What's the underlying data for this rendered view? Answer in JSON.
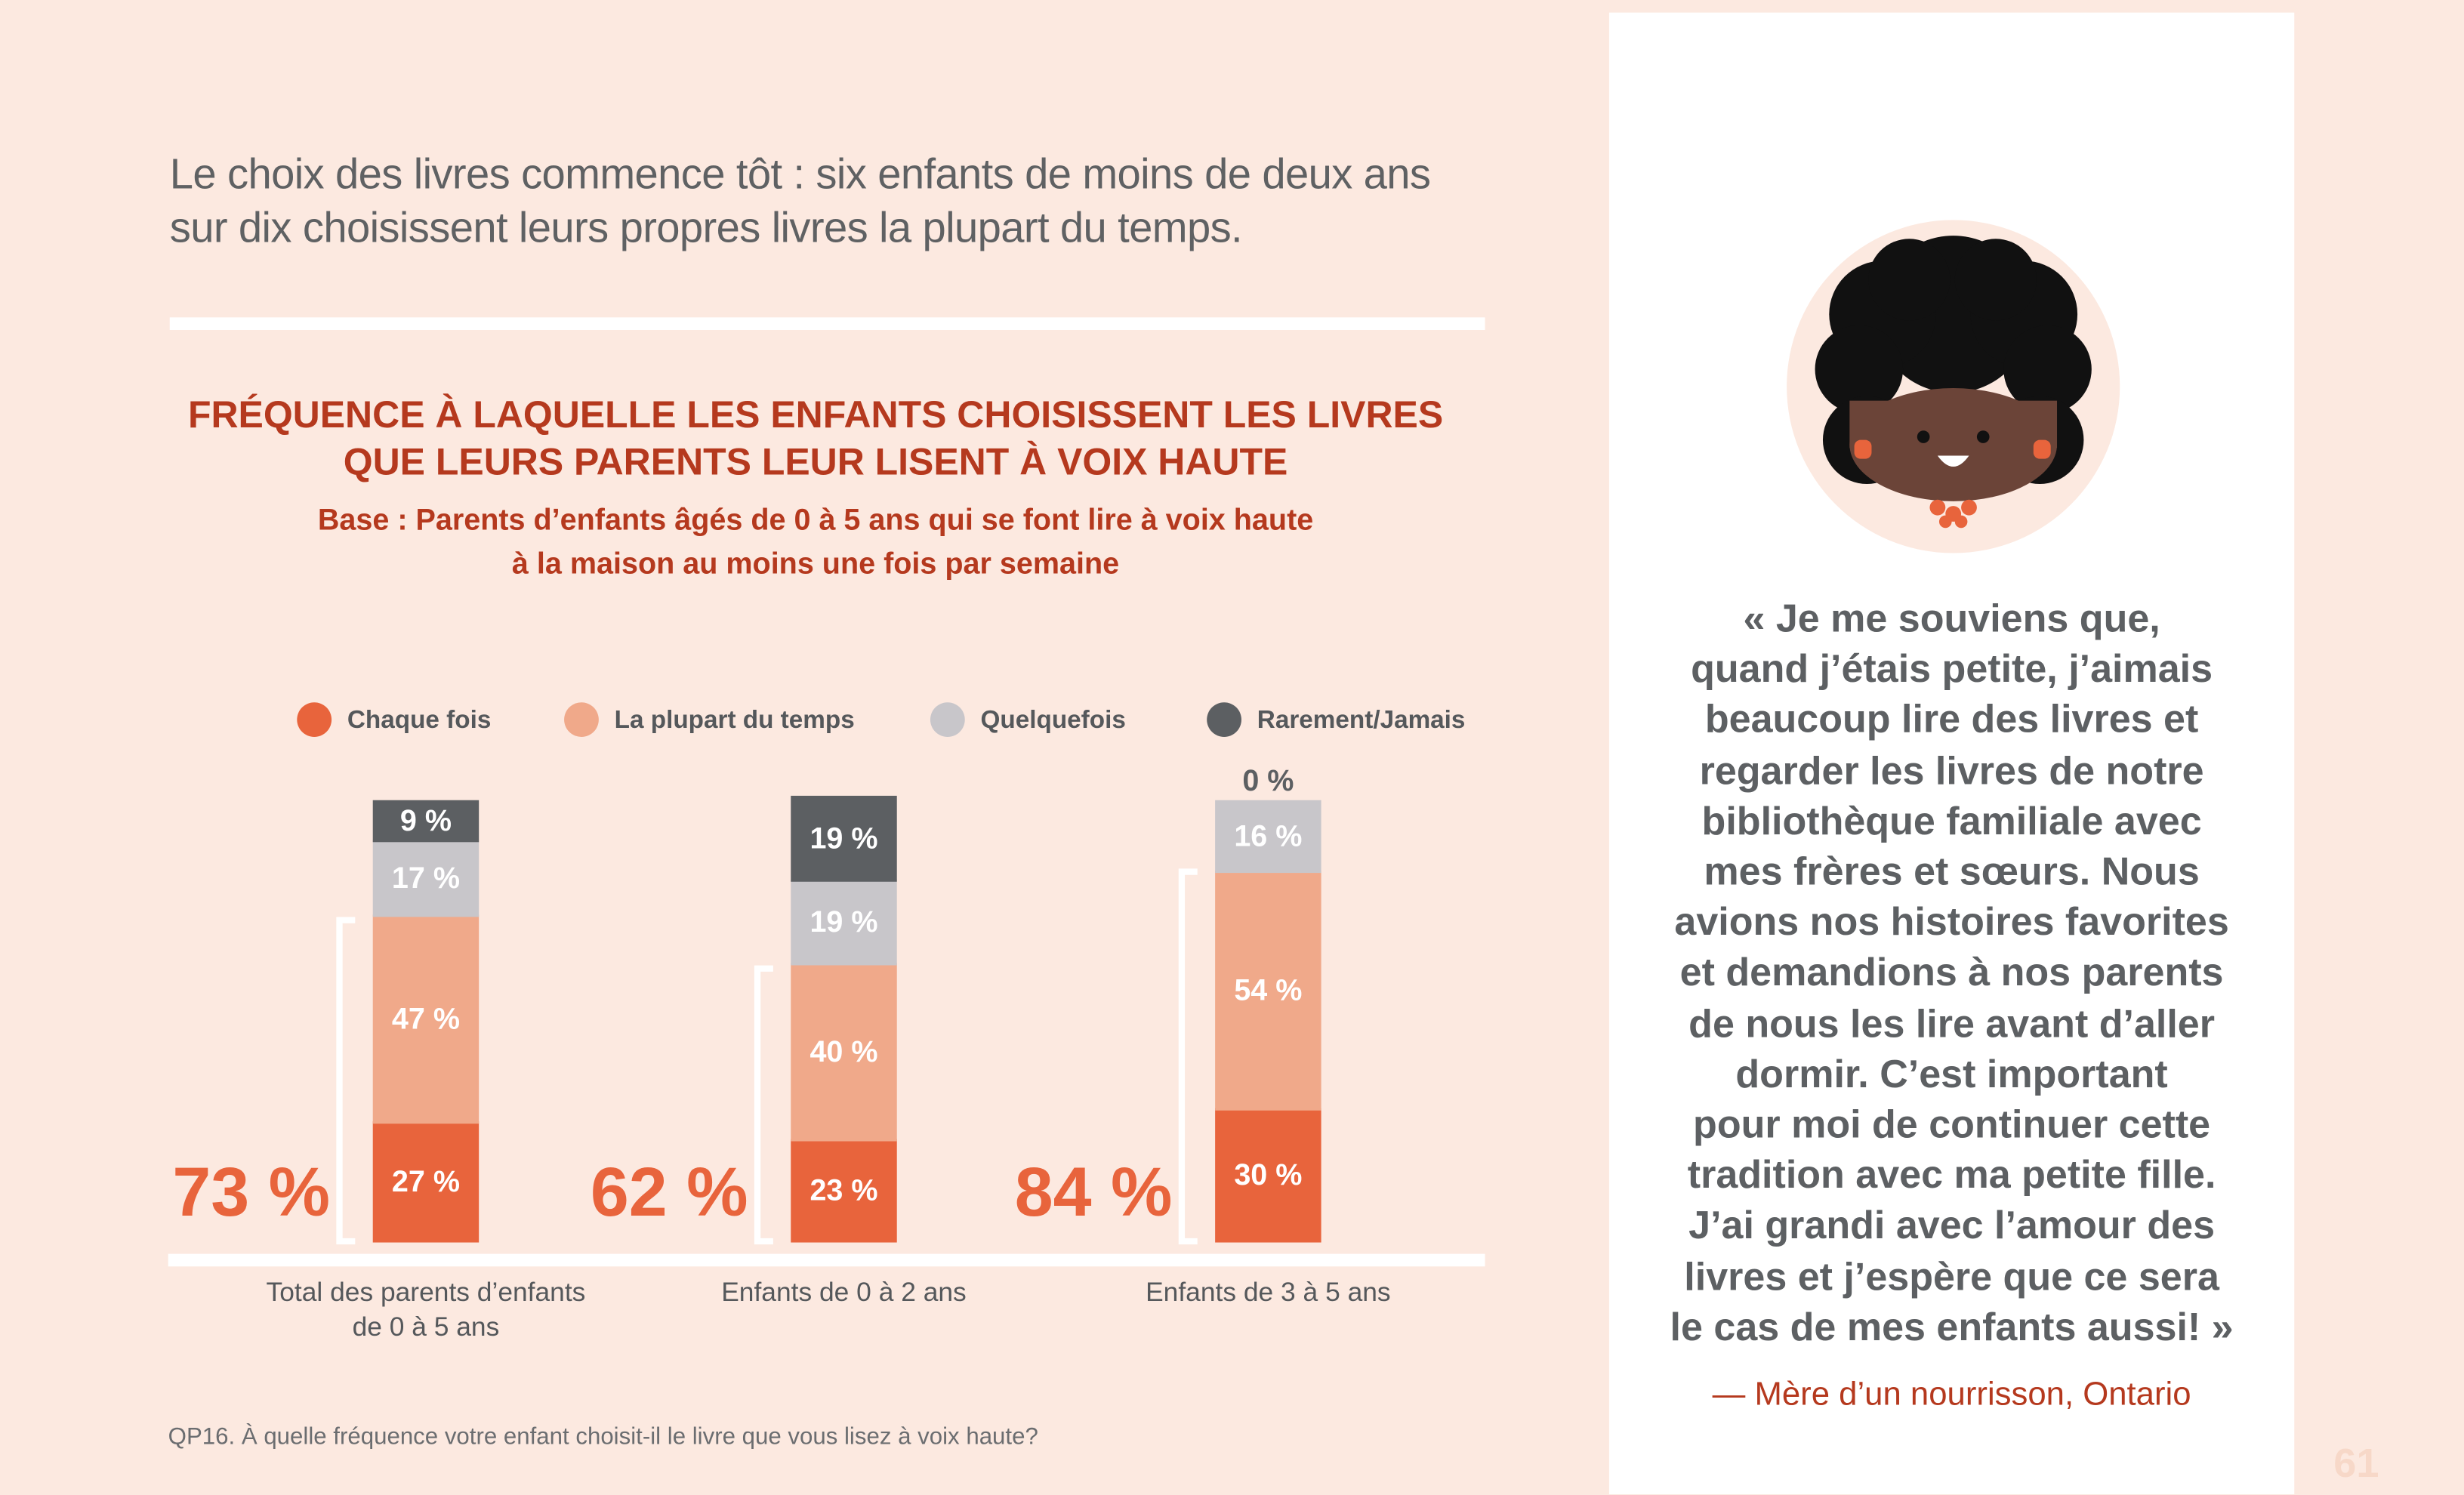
{
  "header": {
    "title": [
      "Le choix des livres commence tôt : six enfants de moins de deux ans",
      "sur dix choisissent leurs propres livres la plupart du temps."
    ]
  },
  "chart_data": {
    "type": "stacked-bar",
    "title": [
      "FRÉQUENCE À LAQUELLE LES ENFANTS CHOISISSENT LES LIVRES",
      "QUE LEURS PARENTS LEUR LISENT À VOIX HAUTE"
    ],
    "subtitle": [
      "Base : Parents d’enfants âgés de 0 à 5 ans qui se font lire à voix haute",
      "à la maison au moins une fois par semaine"
    ],
    "categories": [
      "Total des parents d’enfants de 0 à 5 ans",
      "Enfants de 0 à 2 ans",
      "Enfants de 3 à 5 ans"
    ],
    "series": [
      {
        "name": "Chaque fois",
        "color": "#e8643c",
        "values": [
          27,
          23,
          30
        ],
        "value_labels": [
          "27 %",
          "23 %",
          "30 %"
        ]
      },
      {
        "name": "La plupart du temps",
        "color": "#f0a98a",
        "values": [
          47,
          40,
          54
        ],
        "value_labels": [
          "47 %",
          "40 %",
          "54 %"
        ]
      },
      {
        "name": "Quelquefois",
        "color": "#c8c6ca",
        "values": [
          17,
          19,
          16
        ],
        "value_labels": [
          "17 %",
          "19 %",
          "16 %"
        ]
      },
      {
        "name": "Rarement/Jamais",
        "color": "#5c5f62",
        "values": [
          9,
          19,
          0
        ],
        "value_labels": [
          "9 %",
          "19 %",
          "0 %"
        ]
      }
    ],
    "totals": {
      "color": "#e8643c",
      "values": [
        73,
        62,
        84
      ],
      "value_labels": [
        "73 %",
        "62 %",
        "84 %"
      ]
    }
  },
  "footnote": "QP16. À quelle fréquence votre enfant choisit-il le livre que vous lisez à voix haute?",
  "quote": {
    "lines": [
      "« Je me souviens que,",
      "quand j’étais petite, j’aimais",
      "beaucoup lire des livres et",
      "regarder les livres de notre",
      "bibliothèque familiale avec",
      "mes frères et sœurs. Nous",
      "avions nos histoires favorites",
      "et demandions à nos parents",
      "de nous les lire avant d’aller",
      "dormir. C’est important",
      "pour moi de continuer cette",
      "tradition avec ma petite fille.",
      "J’ai grandi avec l’amour des",
      "livres et j’espère que ce sera",
      "le cas de mes enfants aussi! »"
    ],
    "attribution": "— Mère d’un nourrisson, Ontario"
  },
  "page_number": "61"
}
